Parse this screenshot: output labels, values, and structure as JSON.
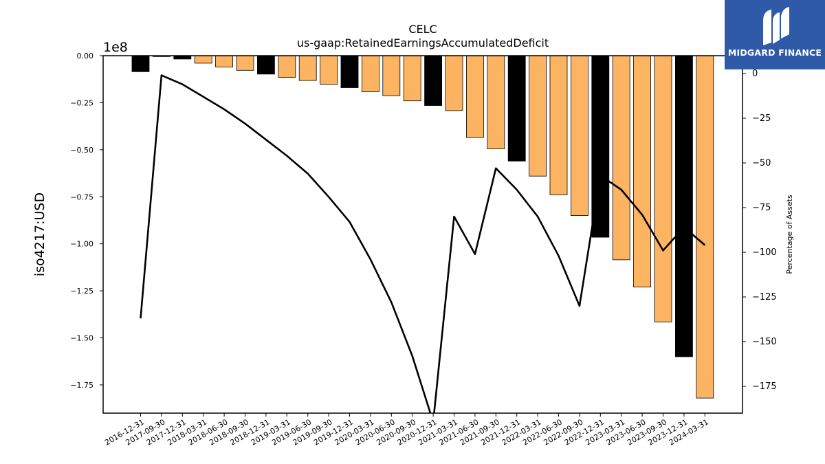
{
  "chart_data": {
    "type": "bar",
    "title": "CELC",
    "subtitle": "us-gaap:RetainedEarningsAccumulatedDeficit",
    "ylabel": "iso4217:USD",
    "y2label": "Percentage of Assets",
    "y_offset_text": "1e8",
    "ylim": [
      -1.9,
      0.0
    ],
    "y2lim": [
      -190,
      10
    ],
    "yticks": [
      "0.00",
      "−0.25",
      "−0.50",
      "−0.75",
      "−1.00",
      "−1.25",
      "−1.50",
      "−1.75"
    ],
    "y2ticks": [
      "0",
      "−25",
      "−50",
      "−75",
      "−100",
      "−125",
      "−150",
      "−175"
    ],
    "grid": false,
    "categories": [
      "2016-12-31",
      "2017-09-30",
      "2017-12-31",
      "2018-03-31",
      "2018-06-30",
      "2018-09-30",
      "2018-12-31",
      "2019-03-31",
      "2019-06-30",
      "2019-09-30",
      "2019-12-31",
      "2020-03-31",
      "2020-06-30",
      "2020-09-30",
      "2020-12-31",
      "2021-03-31",
      "2021-06-30",
      "2021-09-30",
      "2021-12-31",
      "2022-03-31",
      "2022-06-30",
      "2022-09-30",
      "2022-12-31",
      "2023-03-31",
      "2023-06-30",
      "2023-09-30",
      "2023-12-31",
      "2024-03-31"
    ],
    "series": [
      {
        "type": "bar",
        "values": [
          -0.085,
          -0.005,
          -0.018,
          -0.04,
          -0.06,
          -0.078,
          -0.098,
          -0.115,
          -0.132,
          -0.152,
          -0.17,
          -0.192,
          -0.213,
          -0.24,
          -0.265,
          -0.292,
          -0.435,
          -0.495,
          -0.56,
          -0.64,
          -0.74,
          -0.85,
          -0.965,
          -1.085,
          -1.23,
          -1.415,
          -1.6,
          -1.82
        ],
        "period_types": [
          "annual",
          "quarter",
          "annual",
          "quarter",
          "quarter",
          "quarter",
          "annual",
          "quarter",
          "quarter",
          "quarter",
          "annual",
          "quarter",
          "quarter",
          "quarter",
          "annual",
          "quarter",
          "quarter",
          "quarter",
          "annual",
          "quarter",
          "quarter",
          "quarter",
          "annual",
          "quarter",
          "quarter",
          "quarter",
          "annual",
          "quarter"
        ],
        "colors": {
          "annual": "#000000",
          "quarter": "#fdb462"
        }
      },
      {
        "type": "line",
        "axis": "right",
        "color": "#000000",
        "values": [
          -137,
          -1,
          -6,
          -13,
          -20,
          -28,
          -37,
          -46,
          -56,
          -69,
          -83,
          -104,
          -128,
          -158,
          -195,
          -80,
          -101,
          -53,
          -65,
          -80,
          -102,
          -130,
          -57,
          -65,
          -79,
          -99,
          -86,
          -96
        ]
      }
    ]
  },
  "logo": {
    "text": "MIDGARD FINANCE"
  }
}
